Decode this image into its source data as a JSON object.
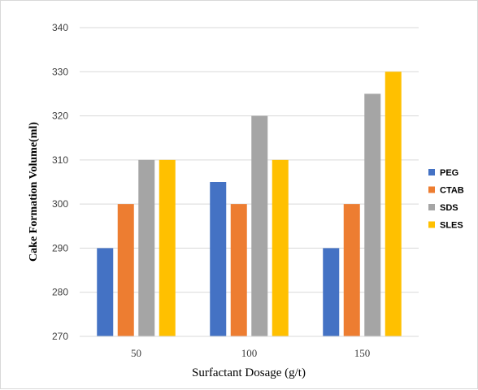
{
  "chart_data": {
    "type": "bar",
    "title": "",
    "xlabel": "Surfactant Dosage (g/t)",
    "ylabel": "Cake Formation Volume(ml)",
    "categories": [
      "50",
      "100",
      "150"
    ],
    "series": [
      {
        "name": "PEG",
        "color": "#4472c4",
        "values": [
          290,
          305,
          290
        ]
      },
      {
        "name": "CTAB",
        "color": "#ed7d31",
        "values": [
          300,
          300,
          300
        ]
      },
      {
        "name": "SDS",
        "color": "#a5a5a5",
        "values": [
          310,
          320,
          325
        ]
      },
      {
        "name": "SLES",
        "color": "#ffc000",
        "values": [
          310,
          310,
          330
        ]
      }
    ],
    "ylim": [
      270,
      340
    ],
    "yticks": [
      270,
      280,
      290,
      300,
      310,
      320,
      330,
      340
    ],
    "grid": true,
    "legend_position": "right"
  }
}
